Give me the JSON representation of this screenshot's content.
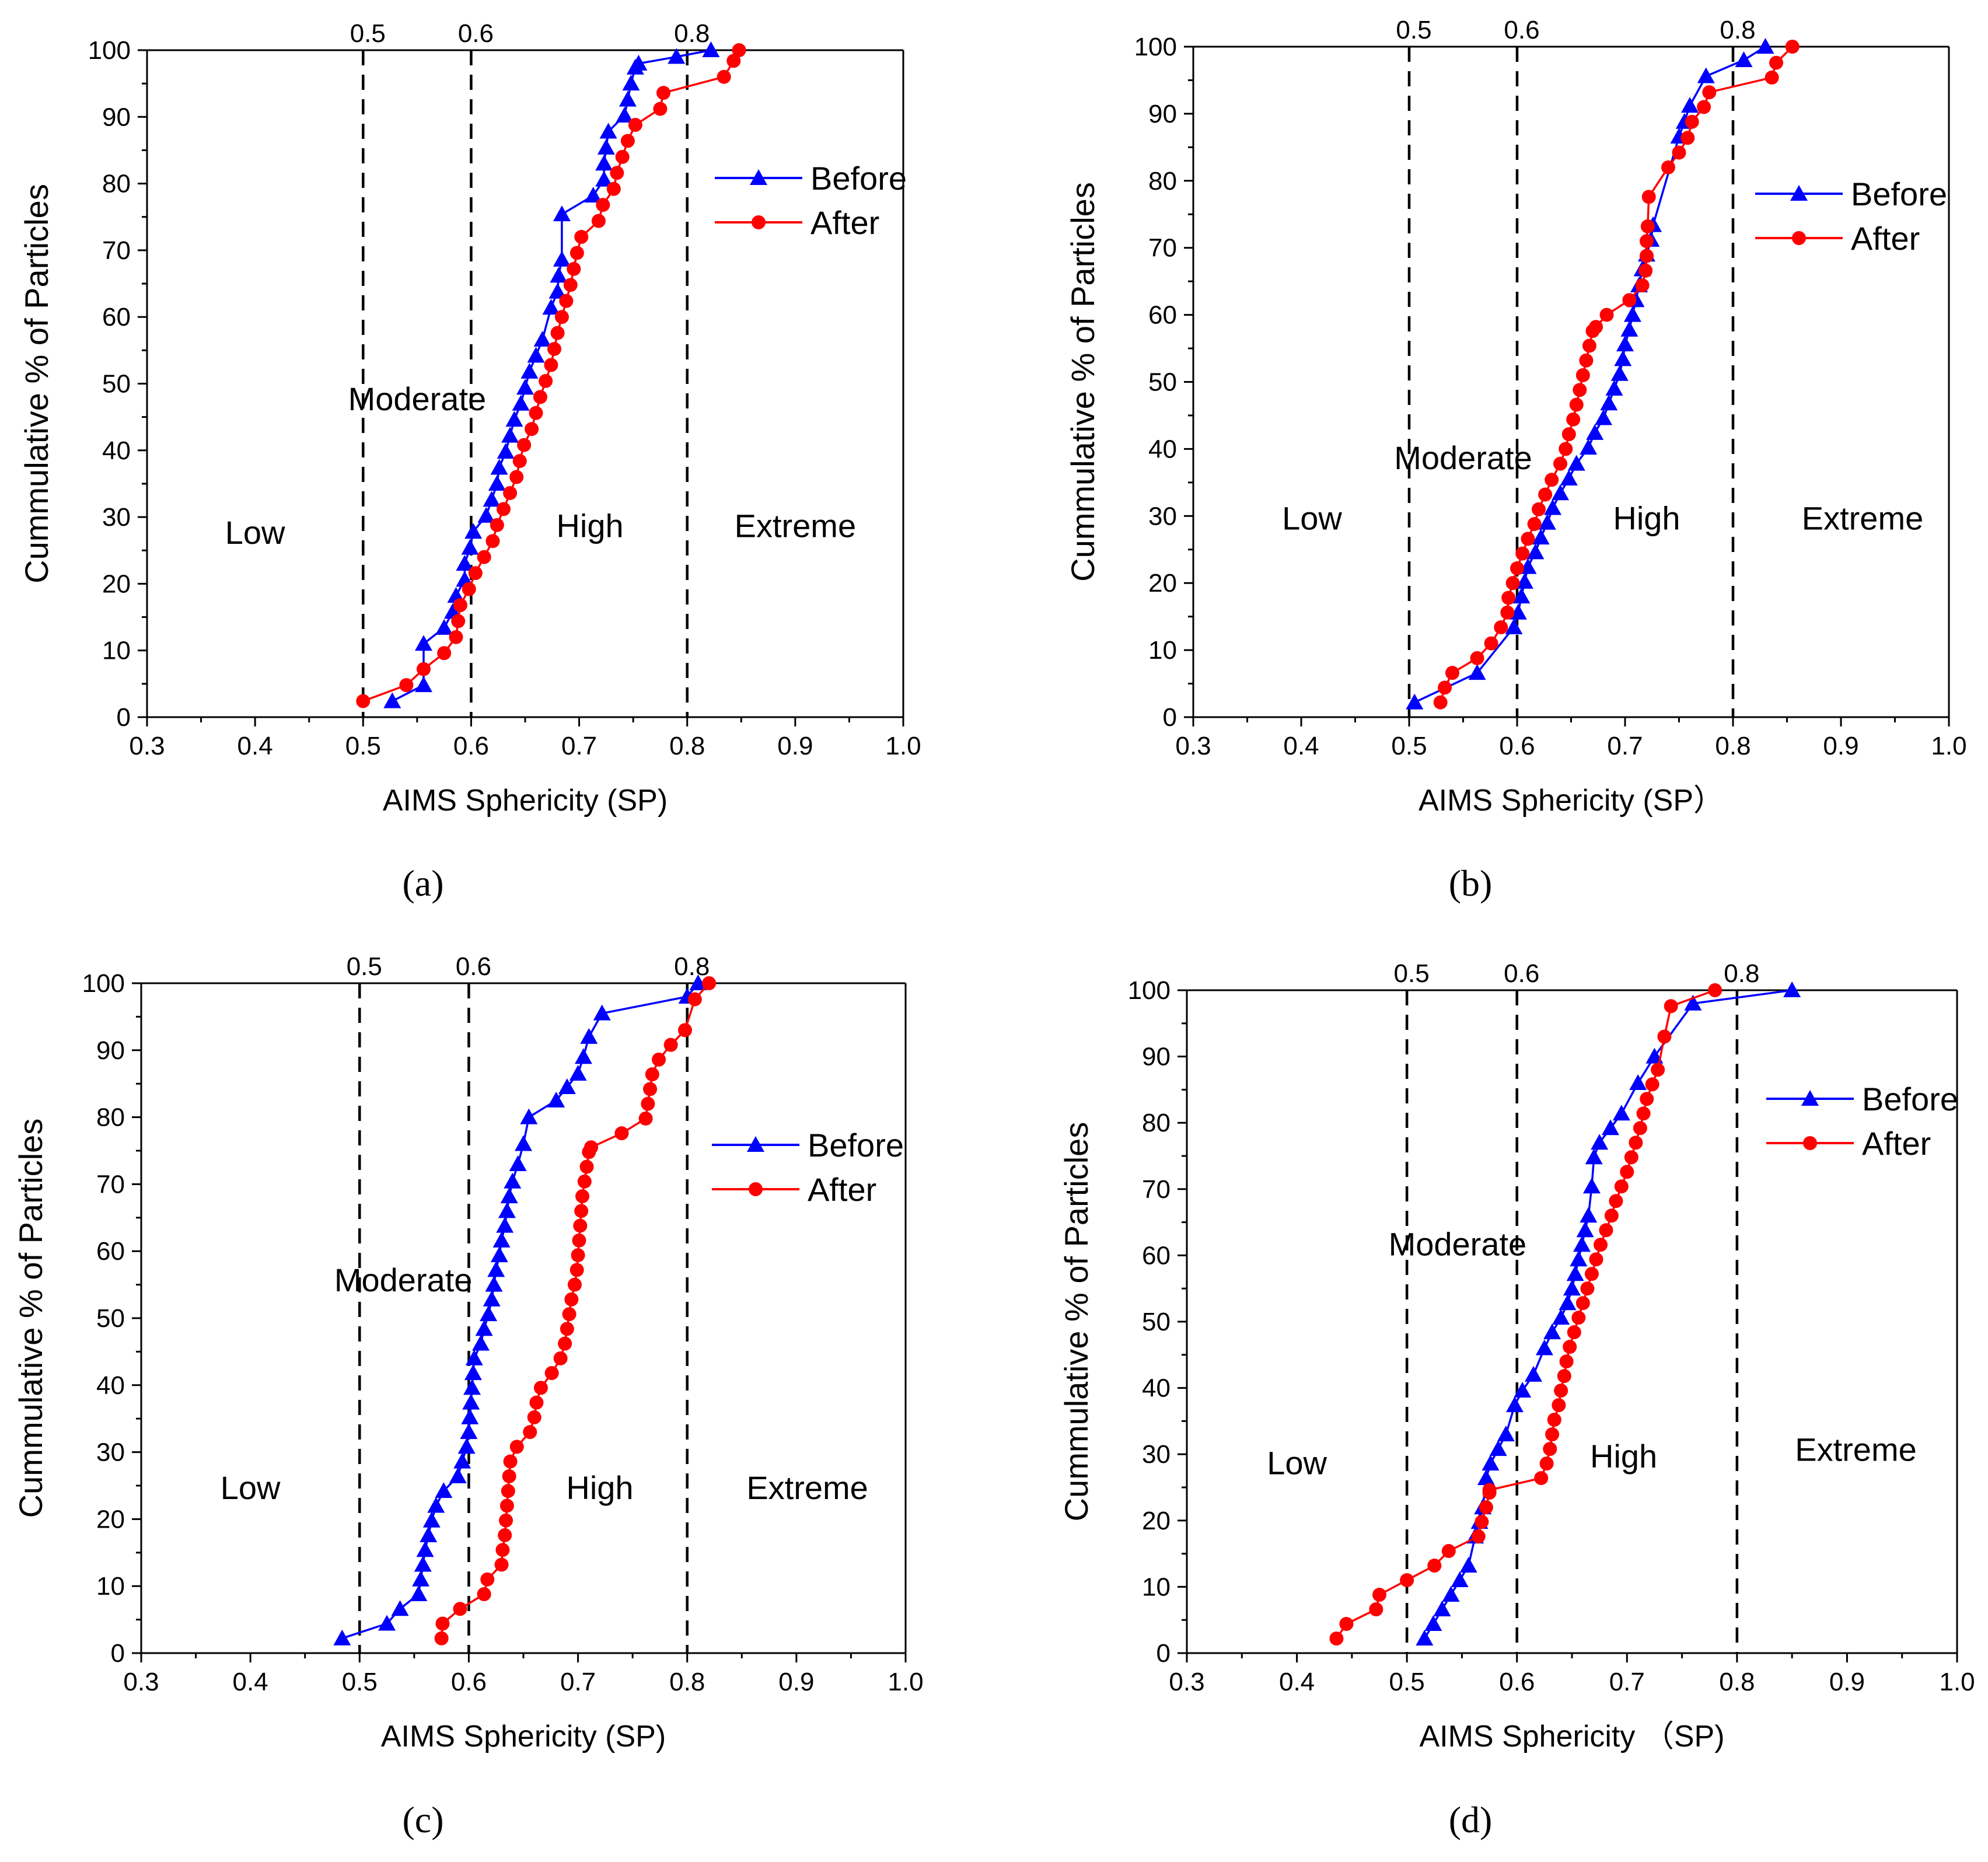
{
  "chart_data": [
    {
      "type": "line",
      "panel_label": "(a)",
      "xlabel": "AIMS Sphericity (SP)",
      "ylabel": "Cummulative % of Particles",
      "xlim": [
        0.3,
        1.0
      ],
      "ylim": [
        0,
        100
      ],
      "xticks": [
        "0.3",
        "0.4",
        "0.5",
        "0.6",
        "0.7",
        "0.8",
        "0.9",
        "1.0"
      ],
      "yticks": [
        "0",
        "10",
        "20",
        "30",
        "40",
        "50",
        "60",
        "70",
        "80",
        "90",
        "100"
      ],
      "thresholds": [
        0.5,
        0.6,
        0.8
      ],
      "threshold_labels": [
        "0.5",
        "0.6",
        "0.8"
      ],
      "zones": [
        {
          "label": "Low",
          "x": 0.4,
          "y": 26
        },
        {
          "label": "Moderate",
          "x": 0.55,
          "y": 46
        },
        {
          "label": "High",
          "x": 0.71,
          "y": 27
        },
        {
          "label": "Extreme",
          "x": 0.9,
          "y": 27
        }
      ],
      "legend": {
        "position": "top-right"
      },
      "series": [
        {
          "name": "Before",
          "marker": "triangle",
          "color": "#0000ff",
          "x": [
            0.527,
            0.556,
            0.556,
            0.575,
            0.583,
            0.586,
            0.594,
            0.594,
            0.599,
            0.602,
            0.614,
            0.619,
            0.624,
            0.626,
            0.632,
            0.636,
            0.64,
            0.646,
            0.65,
            0.654,
            0.66,
            0.666,
            0.674,
            0.68,
            0.681,
            0.684,
            0.684,
            0.713,
            0.723,
            0.723,
            0.725,
            0.727,
            0.742,
            0.745,
            0.748,
            0.752,
            0.755,
            0.79,
            0.822
          ],
          "y": [
            2.4,
            4.8,
            11.0,
            13.4,
            15.8,
            18.2,
            20.6,
            23.0,
            25.4,
            27.8,
            30.2,
            32.6,
            35.0,
            37.4,
            39.8,
            42.2,
            44.6,
            47.0,
            49.4,
            51.8,
            54.2,
            56.6,
            61.4,
            63.8,
            66.2,
            68.6,
            75.4,
            78.2,
            80.6,
            83.0,
            85.4,
            87.8,
            90.2,
            92.6,
            95.0,
            97.4,
            98.0,
            99.0,
            100.0
          ]
        },
        {
          "name": "After",
          "marker": "circle",
          "color": "#ff0000",
          "x": [
            0.5,
            0.54,
            0.556,
            0.575,
            0.586,
            0.588,
            0.59,
            0.598,
            0.604,
            0.612,
            0.62,
            0.624,
            0.63,
            0.636,
            0.642,
            0.645,
            0.649,
            0.656,
            0.66,
            0.664,
            0.669,
            0.674,
            0.677,
            0.68,
            0.684,
            0.688,
            0.692,
            0.695,
            0.698,
            0.702,
            0.718,
            0.722,
            0.732,
            0.735,
            0.74,
            0.745,
            0.752,
            0.775,
            0.778,
            0.834,
            0.843,
            0.848
          ],
          "y": [
            2.4,
            4.8,
            7.2,
            9.6,
            12.0,
            14.4,
            16.8,
            19.2,
            21.6,
            24.0,
            26.4,
            28.8,
            31.2,
            33.6,
            36.0,
            38.4,
            40.8,
            43.2,
            45.6,
            48.0,
            50.4,
            52.8,
            55.2,
            57.6,
            60.0,
            62.4,
            64.8,
            67.2,
            69.6,
            72.0,
            74.4,
            76.8,
            79.2,
            81.6,
            84.0,
            86.4,
            88.8,
            91.2,
            93.6,
            96.0,
            98.4,
            100.0
          ]
        }
      ]
    },
    {
      "type": "line",
      "panel_label": "(b)",
      "xlabel": "AIMS Sphericity (SP）",
      "ylabel": "Cummulative % of  Particles",
      "xlim": [
        0.3,
        1.0
      ],
      "ylim": [
        0,
        100
      ],
      "xticks": [
        "0.3",
        "0.4",
        "0.5",
        "0.6",
        "0.7",
        "0.8",
        "0.9",
        "1.0"
      ],
      "yticks": [
        "0",
        "10",
        "20",
        "30",
        "40",
        "50",
        "60",
        "70",
        "80",
        "90",
        "100"
      ],
      "thresholds": [
        0.5,
        0.6,
        0.8
      ],
      "threshold_labels": [
        "0.5",
        "0.6",
        "0.8"
      ],
      "zones": [
        {
          "label": "Low",
          "x": 0.41,
          "y": 28
        },
        {
          "label": "Moderate",
          "x": 0.55,
          "y": 37
        },
        {
          "label": "High",
          "x": 0.72,
          "y": 28
        },
        {
          "label": "Extreme",
          "x": 0.92,
          "y": 28
        }
      ],
      "legend": {
        "position": "top-right"
      },
      "series": [
        {
          "name": "Before",
          "marker": "triangle",
          "color": "#0000ff",
          "x": [
            0.505,
            0.563,
            0.597,
            0.601,
            0.604,
            0.607,
            0.61,
            0.617,
            0.622,
            0.628,
            0.633,
            0.64,
            0.648,
            0.655,
            0.666,
            0.672,
            0.68,
            0.685,
            0.69,
            0.695,
            0.698,
            0.7,
            0.704,
            0.707,
            0.71,
            0.713,
            0.716,
            0.72,
            0.724,
            0.726,
            0.75,
            0.755,
            0.76,
            0.775,
            0.81,
            0.83
          ],
          "y": [
            2.2,
            6.6,
            13.4,
            15.6,
            18.0,
            20.2,
            22.4,
            24.6,
            26.8,
            29.0,
            31.2,
            33.4,
            35.6,
            37.8,
            40.2,
            42.4,
            44.6,
            46.8,
            49.0,
            51.2,
            53.4,
            55.6,
            57.8,
            60.0,
            62.2,
            64.4,
            66.8,
            69.0,
            71.2,
            73.4,
            86.6,
            88.8,
            91.2,
            95.6,
            98.0,
            100.0
          ]
        },
        {
          "name": "After",
          "marker": "circle",
          "color": "#ff0000",
          "x": [
            0.529,
            0.533,
            0.54,
            0.563,
            0.576,
            0.585,
            0.591,
            0.592,
            0.596,
            0.6,
            0.605,
            0.61,
            0.616,
            0.62,
            0.626,
            0.632,
            0.64,
            0.645,
            0.648,
            0.652,
            0.655,
            0.658,
            0.661,
            0.664,
            0.667,
            0.67,
            0.673,
            0.683,
            0.704,
            0.716,
            0.719,
            0.72,
            0.72,
            0.721,
            0.722,
            0.74,
            0.75,
            0.758,
            0.762,
            0.773,
            0.778,
            0.836,
            0.84,
            0.855
          ],
          "y": [
            2.2,
            4.4,
            6.6,
            8.8,
            11.0,
            13.4,
            15.6,
            17.8,
            20.0,
            22.2,
            24.4,
            26.6,
            28.8,
            31.0,
            33.2,
            35.4,
            37.8,
            40.0,
            42.2,
            44.4,
            46.6,
            48.8,
            51.0,
            53.2,
            55.4,
            57.6,
            58.2,
            60.0,
            62.2,
            64.4,
            66.6,
            68.8,
            71.0,
            73.2,
            77.6,
            82.0,
            84.2,
            86.4,
            88.8,
            91.0,
            93.2,
            95.4,
            97.6,
            100.0
          ]
        }
      ]
    },
    {
      "type": "line",
      "panel_label": "(c)",
      "xlabel": "AIMS Sphericity  (SP)",
      "ylabel": "Cummulative % of  Particles",
      "xlim": [
        0.3,
        1.0
      ],
      "ylim": [
        0,
        100
      ],
      "xticks": [
        "0.3",
        "0.4",
        "0.5",
        "0.6",
        "0.7",
        "0.8",
        "0.9",
        "1.0"
      ],
      "yticks": [
        "0",
        "10",
        "20",
        "30",
        "40",
        "50",
        "60",
        "70",
        "80",
        "90",
        "100"
      ],
      "thresholds": [
        0.5,
        0.6,
        0.8
      ],
      "threshold_labels": [
        "0.5",
        "0.6",
        "0.8"
      ],
      "zones": [
        {
          "label": "Low",
          "x": 0.4,
          "y": 23
        },
        {
          "label": "Moderate",
          "x": 0.54,
          "y": 54
        },
        {
          "label": "High",
          "x": 0.72,
          "y": 23
        },
        {
          "label": "Extreme",
          "x": 0.91,
          "y": 23
        }
      ],
      "legend": {
        "position": "top-right"
      },
      "series": [
        {
          "name": "Before",
          "marker": "triangle",
          "color": "#0000ff",
          "x": [
            0.484,
            0.525,
            0.537,
            0.554,
            0.556,
            0.558,
            0.56,
            0.563,
            0.566,
            0.57,
            0.577,
            0.59,
            0.594,
            0.598,
            0.6,
            0.601,
            0.602,
            0.603,
            0.604,
            0.605,
            0.611,
            0.614,
            0.618,
            0.621,
            0.623,
            0.625,
            0.628,
            0.63,
            0.633,
            0.635,
            0.637,
            0.64,
            0.645,
            0.65,
            0.655,
            0.68,
            0.69,
            0.7,
            0.705,
            0.71,
            0.722,
            0.8,
            0.81
          ],
          "y": [
            2.2,
            4.4,
            6.6,
            8.8,
            11.0,
            13.2,
            15.4,
            17.6,
            19.8,
            22.0,
            24.2,
            26.4,
            28.6,
            30.8,
            33.0,
            35.2,
            37.4,
            39.6,
            41.8,
            44.0,
            46.2,
            48.4,
            50.6,
            52.8,
            55.0,
            57.2,
            59.4,
            61.6,
            63.8,
            66.0,
            68.2,
            70.4,
            73.0,
            76.0,
            80.0,
            82.5,
            84.5,
            86.5,
            89.0,
            92.0,
            95.5,
            98.0,
            100.0
          ]
        },
        {
          "name": "After",
          "marker": "circle",
          "color": "#ff0000",
          "x": [
            0.575,
            0.576,
            0.592,
            0.614,
            0.617,
            0.63,
            0.631,
            0.633,
            0.634,
            0.635,
            0.636,
            0.637,
            0.638,
            0.644,
            0.656,
            0.66,
            0.662,
            0.666,
            0.676,
            0.684,
            0.688,
            0.69,
            0.692,
            0.694,
            0.697,
            0.699,
            0.7,
            0.701,
            0.702,
            0.703,
            0.704,
            0.706,
            0.708,
            0.71,
            0.712,
            0.74,
            0.762,
            0.764,
            0.766,
            0.768,
            0.774,
            0.785,
            0.798,
            0.807,
            0.82
          ],
          "y": [
            2.2,
            4.4,
            6.6,
            8.8,
            11.0,
            13.2,
            15.4,
            17.6,
            19.8,
            22.0,
            24.2,
            26.4,
            28.6,
            30.8,
            33.0,
            35.2,
            37.4,
            39.6,
            41.8,
            44.0,
            46.2,
            48.4,
            50.6,
            52.8,
            55.0,
            57.2,
            59.4,
            61.6,
            63.8,
            66.0,
            68.2,
            70.4,
            72.6,
            74.8,
            75.5,
            77.6,
            79.8,
            82.0,
            84.2,
            86.4,
            88.6,
            90.8,
            93.0,
            97.6,
            100.0
          ]
        }
      ]
    },
    {
      "type": "line",
      "panel_label": "(d)",
      "xlabel": "AIMS Sphericity   （SP)",
      "ylabel": "Cummulative % of  Particles",
      "xlim": [
        0.3,
        1.0
      ],
      "ylim": [
        0,
        100
      ],
      "xticks": [
        "0.3",
        "0.4",
        "0.5",
        "0.6",
        "0.7",
        "0.8",
        "0.9",
        "1.0"
      ],
      "yticks": [
        "0",
        "10",
        "20",
        "30",
        "40",
        "50",
        "60",
        "70",
        "80",
        "90",
        "100"
      ],
      "thresholds": [
        0.5,
        0.6,
        0.8
      ],
      "threshold_labels": [
        "0.5",
        "0.6",
        "0.8"
      ],
      "zones": [
        {
          "label": "Low",
          "x": 0.4,
          "y": 27
        },
        {
          "label": "Moderate",
          "x": 0.546,
          "y": 60
        },
        {
          "label": "High",
          "x": 0.697,
          "y": 28
        },
        {
          "label": "Extreme",
          "x": 0.908,
          "y": 29
        }
      ],
      "legend": {
        "position": "top-right"
      },
      "series": [
        {
          "name": "Before",
          "marker": "triangle",
          "color": "#0000ff",
          "x": [
            0.516,
            0.524,
            0.532,
            0.54,
            0.548,
            0.556,
            0.562,
            0.566,
            0.569,
            0.572,
            0.576,
            0.583,
            0.59,
            0.598,
            0.605,
            0.615,
            0.625,
            0.632,
            0.64,
            0.646,
            0.65,
            0.653,
            0.656,
            0.659,
            0.662,
            0.665,
            0.668,
            0.67,
            0.675,
            0.685,
            0.695,
            0.71,
            0.725,
            0.76,
            0.85
          ],
          "y": [
            2.2,
            4.4,
            6.6,
            8.8,
            11.0,
            13.2,
            17.6,
            19.8,
            22.0,
            26.4,
            28.6,
            30.8,
            33.0,
            37.4,
            39.6,
            42.0,
            46.0,
            48.4,
            50.6,
            52.8,
            55.0,
            57.2,
            59.4,
            61.6,
            63.8,
            66.0,
            70.4,
            74.8,
            77.0,
            79.2,
            81.4,
            86.0,
            90.0,
            98.0,
            100.0
          ]
        },
        {
          "name": "After",
          "marker": "circle",
          "color": "#ff0000",
          "x": [
            0.436,
            0.445,
            0.472,
            0.475,
            0.5,
            0.525,
            0.538,
            0.565,
            0.568,
            0.572,
            0.575,
            0.575,
            0.622,
            0.627,
            0.63,
            0.632,
            0.634,
            0.638,
            0.64,
            0.643,
            0.645,
            0.648,
            0.652,
            0.656,
            0.66,
            0.664,
            0.668,
            0.672,
            0.676,
            0.681,
            0.686,
            0.69,
            0.695,
            0.7,
            0.704,
            0.708,
            0.712,
            0.715,
            0.718,
            0.723,
            0.728,
            0.734,
            0.74,
            0.78
          ],
          "y": [
            2.2,
            4.4,
            6.6,
            8.8,
            11.0,
            13.2,
            15.4,
            17.6,
            19.8,
            22.0,
            24.2,
            24.6,
            26.4,
            28.6,
            30.8,
            33.0,
            35.2,
            37.4,
            39.6,
            41.8,
            44.0,
            46.2,
            48.4,
            50.6,
            52.8,
            55.0,
            57.2,
            59.4,
            61.6,
            63.8,
            66.0,
            68.2,
            70.4,
            72.6,
            74.8,
            77.0,
            79.2,
            81.4,
            83.6,
            85.8,
            88.0,
            93.0,
            97.6,
            100.0
          ]
        }
      ]
    }
  ]
}
